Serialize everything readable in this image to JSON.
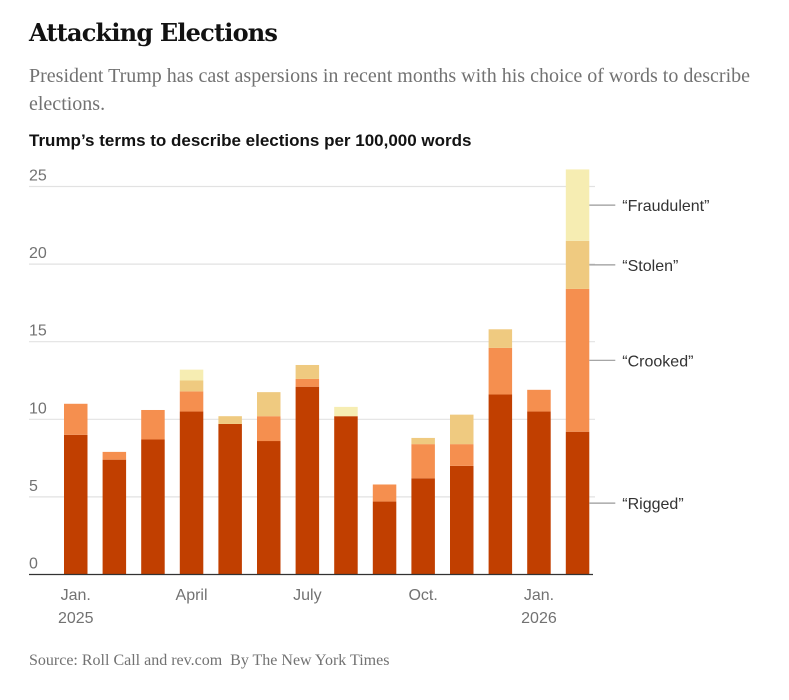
{
  "header": {
    "title": "Attacking Elections",
    "subtitle": "President Trump has cast aspersions in recent months with his choice of words to describe elections."
  },
  "footer": {
    "source": "Source:  Roll Call and rev.com",
    "byline": "By The New York Times"
  },
  "chart_data": {
    "type": "bar",
    "stacked": true,
    "title": "Trump’s terms to describe elections per 100,000 words",
    "xlabel": "",
    "ylabel": "",
    "ylim": [
      0,
      25
    ],
    "yticks": [
      "0",
      "5",
      "10",
      "15",
      "20",
      "25"
    ],
    "grid": true,
    "categories": [
      "Jan. 2025",
      "Feb. 2025",
      "Mar. 2025",
      "Apr. 2025",
      "May 2025",
      "Jun. 2025",
      "Jul. 2025",
      "Aug. 2025",
      "Sep. 2025",
      "Oct. 2025",
      "Nov. 2025",
      "Dec. 2025",
      "Jan. 2026",
      "Feb. 2026"
    ],
    "x_tick_labels": [
      {
        "index": 0,
        "line1": "Jan.",
        "line2": "2025"
      },
      {
        "index": 3,
        "line1": "April",
        "line2": ""
      },
      {
        "index": 6,
        "line1": "July",
        "line2": ""
      },
      {
        "index": 9,
        "line1": "Oct.",
        "line2": ""
      },
      {
        "index": 12,
        "line1": "Jan.",
        "line2": "2026"
      }
    ],
    "legend_placement": "right (direct labels)",
    "series": [
      {
        "name": "“Rigged”",
        "color": "#c13f00",
        "values": [
          9.0,
          7.4,
          8.7,
          10.5,
          9.7,
          8.6,
          12.1,
          10.2,
          4.7,
          6.2,
          7.0,
          11.6,
          10.5,
          9.2
        ]
      },
      {
        "name": "“Crooked”",
        "color": "#f58f4f",
        "values": [
          2.0,
          0.5,
          1.9,
          1.3,
          0,
          1.6,
          0.5,
          0,
          1.1,
          2.2,
          1.4,
          3.0,
          1.4,
          9.2
        ]
      },
      {
        "name": "“Stolen”",
        "color": "#efca80",
        "values": [
          0,
          0,
          0,
          0.7,
          0.5,
          1.55,
          0.9,
          0,
          0,
          0.4,
          1.9,
          1.2,
          0,
          3.1
        ]
      },
      {
        "name": "“Fraudulent”",
        "color": "#f6edb2",
        "values": [
          0,
          0,
          0,
          0.7,
          0,
          0,
          0,
          0.6,
          0,
          0,
          0,
          0,
          0,
          4.6
        ]
      }
    ]
  }
}
